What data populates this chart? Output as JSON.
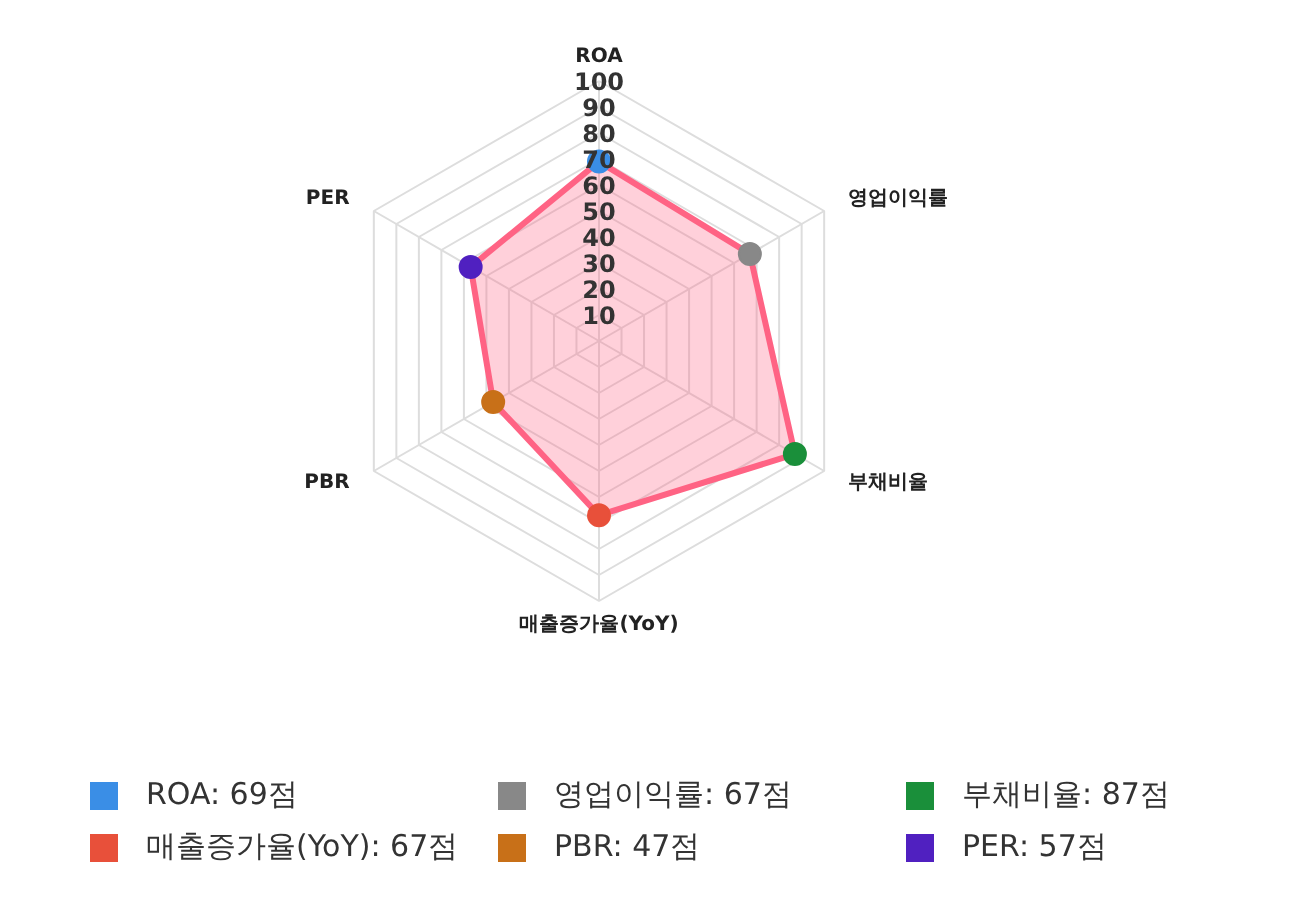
{
  "chart_data": {
    "type": "radar",
    "categories": [
      "ROA",
      "영업이익률",
      "부채비율",
      "매출증가율(YoY)",
      "PBR",
      "PER"
    ],
    "series": [
      {
        "color": "#ff6384",
        "colors": [
          "#3a8ee6",
          "#888888",
          "#1a8f3a",
          "#e8503a",
          "#c87018",
          "#5020c0"
        ],
        "values": [
          69,
          67,
          87,
          67,
          47,
          57
        ]
      }
    ],
    "annotations": [
      "ROA: 69점",
      "영업이익률: 67점",
      "부채비율: 87점",
      "매출증가율(YoY): 67점",
      "PBR: 47점",
      "PER: 57점"
    ],
    "ylim": [
      0,
      100
    ],
    "yticks": [
      10,
      20,
      30,
      40,
      50,
      60,
      70,
      80,
      90,
      100
    ],
    "grid": true,
    "marker": "circle"
  }
}
